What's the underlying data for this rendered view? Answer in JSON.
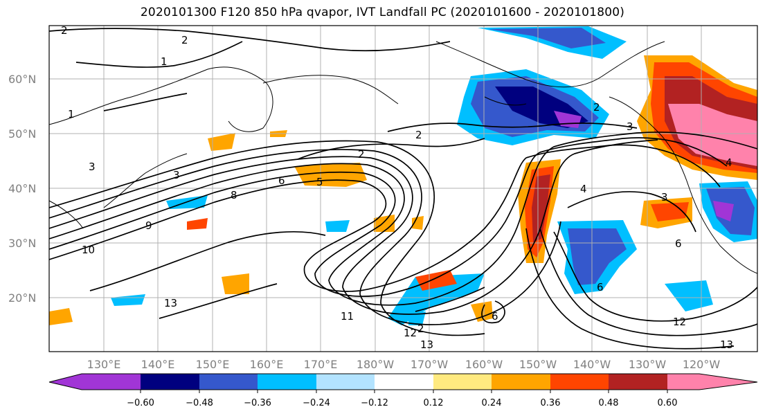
{
  "title": "2020101300 F120 850 hPa qvapor, IVT Landfall PC (2020101600 - 2020101800)",
  "map": {
    "lat_labels": [
      "60°N",
      "50°N",
      "40°N",
      "30°N",
      "20°N"
    ],
    "lon_labels": [
      "130°E",
      "140°E",
      "150°E",
      "160°E",
      "170°E",
      "180°W",
      "170°W",
      "160°W",
      "150°W",
      "140°W",
      "130°W",
      "120°W"
    ],
    "contour_labels": [
      "2",
      "2",
      "1",
      "1",
      "3",
      "2",
      "2",
      "2",
      "3",
      "5",
      "6",
      "8",
      "9",
      "10",
      "13",
      "11",
      "12",
      "13",
      "4",
      "3",
      "6",
      "6",
      "12",
      "13",
      "2",
      "3",
      "6",
      "4"
    ],
    "gridline_color": "#b0b0b0",
    "contour_color": "#000000"
  },
  "colorbar": {
    "colors": [
      "#a135d6",
      "#00007f",
      "#3558cc",
      "#00bfff",
      "#b3e3ff",
      "#ffffff",
      "#ffea80",
      "#ffa500",
      "#ff4500",
      "#b22222",
      "#ff82ab"
    ],
    "ticks": [
      "−0.60",
      "−0.48",
      "−0.36",
      "−0.24",
      "−0.12",
      "0.12",
      "0.24",
      "0.36",
      "0.48",
      "0.60"
    ]
  }
}
